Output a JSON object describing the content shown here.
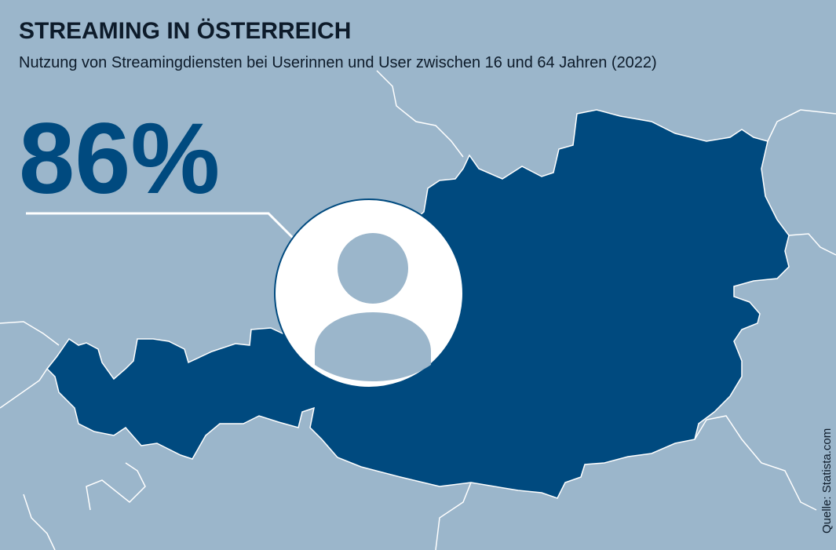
{
  "header": {
    "title": "STREAMING IN ÖSTERREICH",
    "subtitle": "Nutzung von Streamingdiensten bei Userinnen und User zwischen 16 und 64 Jahren (2022)"
  },
  "stat": "86%",
  "source": "Quelle: Statista.com"
}
